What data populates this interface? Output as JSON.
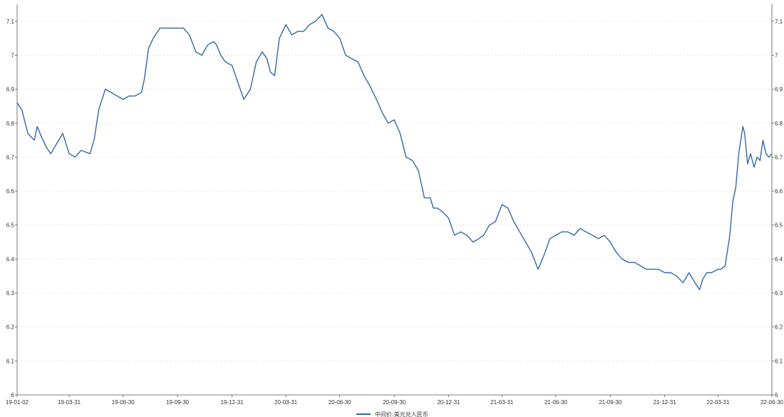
{
  "chart_data": {
    "type": "line",
    "title": "",
    "xlabel": "",
    "ylabel": "",
    "ylim": [
      6.0,
      7.15
    ],
    "y_ticks": [
      6,
      6.1,
      6.2,
      6.3,
      6.4,
      6.5,
      6.6,
      6.7,
      6.8,
      6.9,
      7,
      7.1
    ],
    "y_tick_labels": [
      "6",
      "6.1",
      "6.2",
      "6.3",
      "6.4",
      "6.5",
      "6.6",
      "6.7",
      "6.8",
      "6.9",
      "7",
      "7.1"
    ],
    "x_range": [
      "2019-01-02",
      "2022-06-30"
    ],
    "x_ticks": [
      "2019-01-02",
      "2019-03-31",
      "2019-06-30",
      "2019-09-30",
      "2019-12-31",
      "2020-03-31",
      "2020-06-30",
      "2020-09-30",
      "2020-12-31",
      "2021-03-31",
      "2021-06-30",
      "2021-09-30",
      "2021-12-31",
      "2022-03-31",
      "2022-06-30"
    ],
    "x_tick_labels": [
      "19-01-02",
      "19-03-31",
      "19-06-30",
      "19-09-30",
      "19-12-31",
      "20-03-31",
      "20-06-30",
      "20-09-30",
      "20-12-31",
      "21-03-31",
      "21-06-30",
      "21-09-30",
      "21-12-31",
      "22-03-31",
      "22-06-30"
    ],
    "grid": true,
    "dual_y_axis": true,
    "legend_position": "bottom-center",
    "series": [
      {
        "name": "中间价:美元兑人民币",
        "color": "#3566a9",
        "points": [
          [
            "2019-01-02",
            6.86
          ],
          [
            "2019-01-10",
            6.84
          ],
          [
            "2019-01-20",
            6.77
          ],
          [
            "2019-01-31",
            6.75
          ],
          [
            "2019-02-05",
            6.79
          ],
          [
            "2019-02-12",
            6.76
          ],
          [
            "2019-02-20",
            6.73
          ],
          [
            "2019-02-28",
            6.71
          ],
          [
            "2019-03-10",
            6.74
          ],
          [
            "2019-03-20",
            6.77
          ],
          [
            "2019-03-31",
            6.71
          ],
          [
            "2019-04-10",
            6.7
          ],
          [
            "2019-04-20",
            6.72
          ],
          [
            "2019-05-05",
            6.71
          ],
          [
            "2019-05-12",
            6.75
          ],
          [
            "2019-05-20",
            6.84
          ],
          [
            "2019-05-31",
            6.9
          ],
          [
            "2019-06-10",
            6.89
          ],
          [
            "2019-06-20",
            6.88
          ],
          [
            "2019-06-30",
            6.87
          ],
          [
            "2019-07-10",
            6.88
          ],
          [
            "2019-07-20",
            6.88
          ],
          [
            "2019-07-31",
            6.89
          ],
          [
            "2019-08-05",
            6.93
          ],
          [
            "2019-08-12",
            7.02
          ],
          [
            "2019-08-20",
            7.05
          ],
          [
            "2019-08-31",
            7.08
          ],
          [
            "2019-09-10",
            7.08
          ],
          [
            "2019-09-20",
            7.08
          ],
          [
            "2019-09-30",
            7.08
          ],
          [
            "2019-10-10",
            7.08
          ],
          [
            "2019-10-20",
            7.06
          ],
          [
            "2019-10-31",
            7.01
          ],
          [
            "2019-11-10",
            7.0
          ],
          [
            "2019-11-20",
            7.03
          ],
          [
            "2019-11-30",
            7.04
          ],
          [
            "2019-12-05",
            7.03
          ],
          [
            "2019-12-12",
            7.0
          ],
          [
            "2019-12-20",
            6.98
          ],
          [
            "2019-12-31",
            6.97
          ],
          [
            "2020-01-10",
            6.92
          ],
          [
            "2020-01-20",
            6.87
          ],
          [
            "2020-01-31",
            6.9
          ],
          [
            "2020-02-10",
            6.98
          ],
          [
            "2020-02-20",
            7.01
          ],
          [
            "2020-02-28",
            6.99
          ],
          [
            "2020-03-05",
            6.95
          ],
          [
            "2020-03-12",
            6.94
          ],
          [
            "2020-03-20",
            7.05
          ],
          [
            "2020-03-31",
            7.09
          ],
          [
            "2020-04-10",
            7.06
          ],
          [
            "2020-04-20",
            7.07
          ],
          [
            "2020-04-30",
            7.07
          ],
          [
            "2020-05-10",
            7.09
          ],
          [
            "2020-05-20",
            7.1
          ],
          [
            "2020-05-31",
            7.12
          ],
          [
            "2020-06-10",
            7.08
          ],
          [
            "2020-06-20",
            7.07
          ],
          [
            "2020-06-30",
            7.05
          ],
          [
            "2020-07-10",
            7.0
          ],
          [
            "2020-07-20",
            6.99
          ],
          [
            "2020-07-31",
            6.98
          ],
          [
            "2020-08-10",
            6.94
          ],
          [
            "2020-08-20",
            6.91
          ],
          [
            "2020-08-31",
            6.87
          ],
          [
            "2020-09-10",
            6.83
          ],
          [
            "2020-09-20",
            6.8
          ],
          [
            "2020-09-30",
            6.81
          ],
          [
            "2020-10-10",
            6.77
          ],
          [
            "2020-10-20",
            6.7
          ],
          [
            "2020-10-31",
            6.69
          ],
          [
            "2020-11-10",
            6.66
          ],
          [
            "2020-11-20",
            6.58
          ],
          [
            "2020-11-30",
            6.58
          ],
          [
            "2020-12-05",
            6.55
          ],
          [
            "2020-12-12",
            6.55
          ],
          [
            "2020-12-20",
            6.54
          ],
          [
            "2020-12-31",
            6.52
          ],
          [
            "2021-01-10",
            6.47
          ],
          [
            "2021-01-20",
            6.48
          ],
          [
            "2021-01-31",
            6.47
          ],
          [
            "2021-02-10",
            6.45
          ],
          [
            "2021-02-20",
            6.46
          ],
          [
            "2021-02-28",
            6.47
          ],
          [
            "2021-03-10",
            6.5
          ],
          [
            "2021-03-20",
            6.51
          ],
          [
            "2021-03-31",
            6.56
          ],
          [
            "2021-04-10",
            6.55
          ],
          [
            "2021-04-20",
            6.51
          ],
          [
            "2021-04-30",
            6.48
          ],
          [
            "2021-05-10",
            6.45
          ],
          [
            "2021-05-20",
            6.42
          ],
          [
            "2021-05-31",
            6.37
          ],
          [
            "2021-06-05",
            6.39
          ],
          [
            "2021-06-12",
            6.42
          ],
          [
            "2021-06-20",
            6.46
          ],
          [
            "2021-06-30",
            6.47
          ],
          [
            "2021-07-10",
            6.48
          ],
          [
            "2021-07-20",
            6.48
          ],
          [
            "2021-07-31",
            6.47
          ],
          [
            "2021-08-10",
            6.49
          ],
          [
            "2021-08-20",
            6.48
          ],
          [
            "2021-08-31",
            6.47
          ],
          [
            "2021-09-10",
            6.46
          ],
          [
            "2021-09-20",
            6.47
          ],
          [
            "2021-09-30",
            6.45
          ],
          [
            "2021-10-10",
            6.42
          ],
          [
            "2021-10-20",
            6.4
          ],
          [
            "2021-10-31",
            6.39
          ],
          [
            "2021-11-10",
            6.39
          ],
          [
            "2021-11-20",
            6.38
          ],
          [
            "2021-11-30",
            6.37
          ],
          [
            "2021-12-10",
            6.37
          ],
          [
            "2021-12-20",
            6.37
          ],
          [
            "2021-12-31",
            6.36
          ],
          [
            "2022-01-10",
            6.36
          ],
          [
            "2022-01-20",
            6.35
          ],
          [
            "2022-01-31",
            6.33
          ],
          [
            "2022-02-10",
            6.36
          ],
          [
            "2022-02-20",
            6.33
          ],
          [
            "2022-02-28",
            6.31
          ],
          [
            "2022-03-05",
            6.34
          ],
          [
            "2022-03-12",
            6.36
          ],
          [
            "2022-03-20",
            6.36
          ],
          [
            "2022-03-31",
            6.37
          ],
          [
            "2022-04-05",
            6.37
          ],
          [
            "2022-04-12",
            6.38
          ],
          [
            "2022-04-20",
            6.47
          ],
          [
            "2022-04-25",
            6.57
          ],
          [
            "2022-04-30",
            6.61
          ],
          [
            "2022-05-05",
            6.71
          ],
          [
            "2022-05-12",
            6.79
          ],
          [
            "2022-05-15",
            6.77
          ],
          [
            "2022-05-20",
            6.68
          ],
          [
            "2022-05-25",
            6.71
          ],
          [
            "2022-05-31",
            6.67
          ],
          [
            "2022-06-05",
            6.7
          ],
          [
            "2022-06-10",
            6.69
          ],
          [
            "2022-06-15",
            6.75
          ],
          [
            "2022-06-20",
            6.71
          ],
          [
            "2022-06-25",
            6.7
          ],
          [
            "2022-06-30",
            6.71
          ]
        ]
      }
    ]
  }
}
